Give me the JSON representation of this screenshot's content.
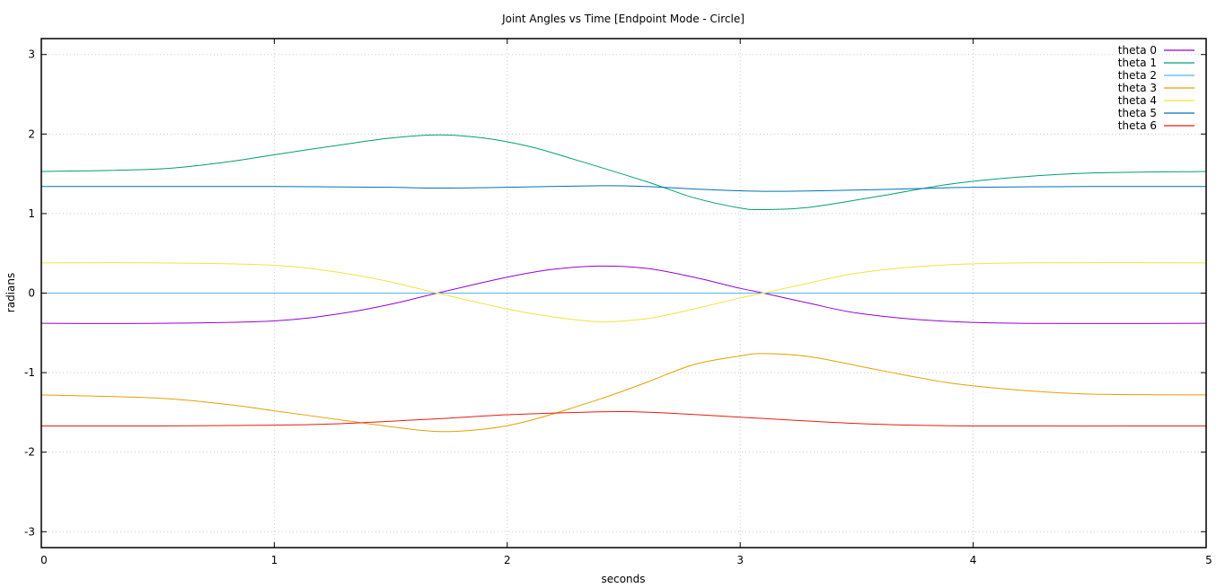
{
  "chart_data": {
    "type": "line",
    "title": "Joint Angles vs Time [Endpoint Mode - Circle]",
    "xlabel": "seconds",
    "ylabel": "radians",
    "xlim": [
      0,
      5
    ],
    "ylim": [
      -3.2,
      3.2
    ],
    "x_ticks": [
      0,
      1,
      2,
      3,
      4,
      5
    ],
    "y_ticks": [
      -3,
      -2,
      -1,
      0,
      1,
      2,
      3
    ],
    "grid": true,
    "legend_position": "top-right",
    "series": [
      {
        "name": "theta 0",
        "color": "#9400d3",
        "points": [
          [
            0,
            -0.38
          ],
          [
            0.5,
            -0.38
          ],
          [
            1.0,
            -0.35
          ],
          [
            1.3,
            -0.25
          ],
          [
            1.5,
            -0.14
          ],
          [
            1.7,
            0.0
          ],
          [
            2.0,
            0.2
          ],
          [
            2.2,
            0.3
          ],
          [
            2.4,
            0.34
          ],
          [
            2.6,
            0.31
          ],
          [
            2.8,
            0.2
          ],
          [
            3.0,
            0.06
          ],
          [
            3.1,
            0.0
          ],
          [
            3.3,
            -0.13
          ],
          [
            3.5,
            -0.25
          ],
          [
            3.8,
            -0.34
          ],
          [
            4.2,
            -0.38
          ],
          [
            5.0,
            -0.38
          ]
        ]
      },
      {
        "name": "theta 1",
        "color": "#009e73",
        "points": [
          [
            0,
            1.53
          ],
          [
            0.5,
            1.56
          ],
          [
            0.8,
            1.65
          ],
          [
            1.0,
            1.74
          ],
          [
            1.3,
            1.87
          ],
          [
            1.5,
            1.95
          ],
          [
            1.7,
            1.99
          ],
          [
            1.9,
            1.95
          ],
          [
            2.1,
            1.84
          ],
          [
            2.3,
            1.67
          ],
          [
            2.6,
            1.4
          ],
          [
            2.8,
            1.2
          ],
          [
            3.0,
            1.07
          ],
          [
            3.1,
            1.05
          ],
          [
            3.3,
            1.08
          ],
          [
            3.6,
            1.22
          ],
          [
            3.9,
            1.37
          ],
          [
            4.2,
            1.46
          ],
          [
            4.5,
            1.51
          ],
          [
            5.0,
            1.53
          ]
        ]
      },
      {
        "name": "theta 2",
        "color": "#56b4e9",
        "points": [
          [
            0,
            0.0
          ],
          [
            5.0,
            0.0
          ]
        ]
      },
      {
        "name": "theta 3",
        "color": "#e69f00",
        "points": [
          [
            0,
            -1.28
          ],
          [
            0.5,
            -1.32
          ],
          [
            0.8,
            -1.4
          ],
          [
            1.0,
            -1.48
          ],
          [
            1.3,
            -1.6
          ],
          [
            1.5,
            -1.68
          ],
          [
            1.7,
            -1.74
          ],
          [
            1.9,
            -1.71
          ],
          [
            2.1,
            -1.6
          ],
          [
            2.4,
            -1.33
          ],
          [
            2.6,
            -1.12
          ],
          [
            2.8,
            -0.9
          ],
          [
            3.0,
            -0.79
          ],
          [
            3.1,
            -0.76
          ],
          [
            3.3,
            -0.8
          ],
          [
            3.6,
            -0.97
          ],
          [
            3.9,
            -1.13
          ],
          [
            4.2,
            -1.22
          ],
          [
            4.5,
            -1.27
          ],
          [
            5.0,
            -1.28
          ]
        ]
      },
      {
        "name": "theta 4",
        "color": "#f0e442",
        "points": [
          [
            0,
            0.38
          ],
          [
            0.5,
            0.38
          ],
          [
            1.0,
            0.35
          ],
          [
            1.3,
            0.25
          ],
          [
            1.5,
            0.14
          ],
          [
            1.7,
            0.0
          ],
          [
            2.0,
            -0.2
          ],
          [
            2.2,
            -0.3
          ],
          [
            2.4,
            -0.36
          ],
          [
            2.6,
            -0.32
          ],
          [
            2.8,
            -0.2
          ],
          [
            3.0,
            -0.06
          ],
          [
            3.1,
            0.0
          ],
          [
            3.3,
            0.13
          ],
          [
            3.5,
            0.25
          ],
          [
            3.8,
            0.34
          ],
          [
            4.2,
            0.38
          ],
          [
            5.0,
            0.38
          ]
        ]
      },
      {
        "name": "theta 5",
        "color": "#0072b2",
        "points": [
          [
            0,
            1.34
          ],
          [
            0.5,
            1.34
          ],
          [
            1.0,
            1.34
          ],
          [
            1.5,
            1.33
          ],
          [
            1.7,
            1.32
          ],
          [
            2.0,
            1.33
          ],
          [
            2.4,
            1.35
          ],
          [
            2.6,
            1.34
          ],
          [
            2.8,
            1.31
          ],
          [
            3.1,
            1.28
          ],
          [
            3.4,
            1.29
          ],
          [
            3.7,
            1.31
          ],
          [
            4.0,
            1.33
          ],
          [
            4.5,
            1.34
          ],
          [
            5.0,
            1.34
          ]
        ]
      },
      {
        "name": "theta 6",
        "color": "#e51e10",
        "points": [
          [
            0,
            -1.67
          ],
          [
            0.5,
            -1.67
          ],
          [
            1.0,
            -1.66
          ],
          [
            1.3,
            -1.64
          ],
          [
            1.7,
            -1.58
          ],
          [
            2.0,
            -1.53
          ],
          [
            2.3,
            -1.5
          ],
          [
            2.5,
            -1.49
          ],
          [
            2.7,
            -1.51
          ],
          [
            3.0,
            -1.56
          ],
          [
            3.3,
            -1.61
          ],
          [
            3.6,
            -1.65
          ],
          [
            4.0,
            -1.67
          ],
          [
            5.0,
            -1.67
          ]
        ]
      }
    ]
  }
}
